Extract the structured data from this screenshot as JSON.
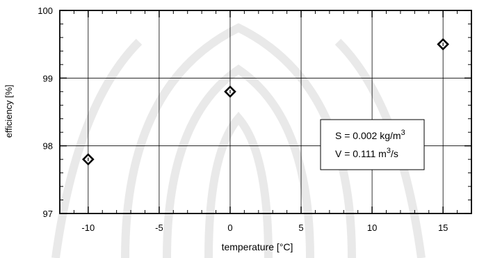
{
  "chart_data": {
    "type": "scatter",
    "title": "",
    "xlabel": "temperature   [°C]",
    "ylabel": "efficiency   [%]",
    "xlim": [
      -12,
      17
    ],
    "ylim": [
      97,
      100
    ],
    "x_ticks": [
      -10,
      -5,
      0,
      5,
      10,
      15
    ],
    "y_ticks": [
      97,
      98,
      99,
      100
    ],
    "grid": true,
    "series": [
      {
        "points": [
          {
            "x": -10,
            "y": 97.8
          },
          {
            "x": 0,
            "y": 98.8
          },
          {
            "x": 15,
            "y": 99.5
          }
        ]
      }
    ],
    "annotation": {
      "line1": {
        "prefix": "S = 0.002 kg/m",
        "sup": "3"
      },
      "line2": {
        "prefix": "V = 0.111 m",
        "sup": "3",
        "suffix": "/s"
      }
    }
  }
}
